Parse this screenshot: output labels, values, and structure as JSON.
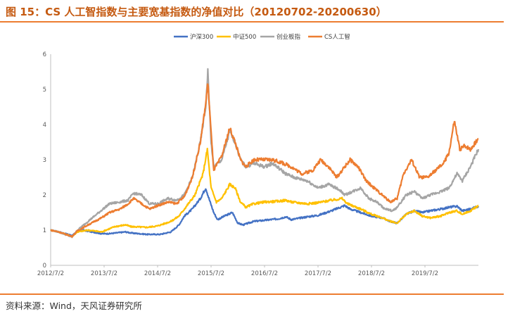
{
  "title": "图 15：CS 人工智指数与主要宽基指数的净值对比（20120702-20200630）",
  "source": "资料来源：Wind，天风证券研究所",
  "chart_data": {
    "type": "line",
    "x_labels": [
      "2012/7/2",
      "2013/7/2",
      "2014/7/2",
      "2015/7/2",
      "2016/7/2",
      "2017/7/2",
      "2018/7/2",
      "2019/7/2"
    ],
    "x_label_dates": [
      2012.5,
      2013.5,
      2014.5,
      2015.5,
      2016.5,
      2017.5,
      2018.5,
      2019.5
    ],
    "xlim": [
      2012.5,
      2020.5
    ],
    "ylim": [
      0,
      6
    ],
    "y_ticks": [
      "0",
      "1",
      "2",
      "3",
      "4",
      "5",
      "6"
    ],
    "grid": false,
    "legend_position": "top-center",
    "series": [
      {
        "name": "沪深300",
        "color": "#4472c4",
        "points": [
          [
            2012.5,
            1.0
          ],
          [
            2012.65,
            0.95
          ],
          [
            2012.9,
            0.85
          ],
          [
            2013.0,
            0.95
          ],
          [
            2013.1,
            1.0
          ],
          [
            2013.45,
            0.9
          ],
          [
            2013.6,
            0.9
          ],
          [
            2013.9,
            0.95
          ],
          [
            2014.0,
            0.92
          ],
          [
            2014.3,
            0.88
          ],
          [
            2014.55,
            0.88
          ],
          [
            2014.75,
            0.95
          ],
          [
            2014.9,
            1.15
          ],
          [
            2015.0,
            1.4
          ],
          [
            2015.15,
            1.6
          ],
          [
            2015.3,
            1.9
          ],
          [
            2015.4,
            2.2
          ],
          [
            2015.46,
            1.9
          ],
          [
            2015.55,
            1.5
          ],
          [
            2015.62,
            1.3
          ],
          [
            2015.75,
            1.4
          ],
          [
            2015.9,
            1.5
          ],
          [
            2016.0,
            1.2
          ],
          [
            2016.1,
            1.15
          ],
          [
            2016.3,
            1.25
          ],
          [
            2016.5,
            1.28
          ],
          [
            2016.75,
            1.32
          ],
          [
            2016.9,
            1.38
          ],
          [
            2017.0,
            1.3
          ],
          [
            2017.3,
            1.38
          ],
          [
            2017.5,
            1.42
          ],
          [
            2017.75,
            1.55
          ],
          [
            2018.0,
            1.7
          ],
          [
            2018.1,
            1.6
          ],
          [
            2018.3,
            1.5
          ],
          [
            2018.5,
            1.4
          ],
          [
            2018.7,
            1.35
          ],
          [
            2018.85,
            1.25
          ],
          [
            2018.98,
            1.2
          ],
          [
            2019.15,
            1.45
          ],
          [
            2019.3,
            1.55
          ],
          [
            2019.45,
            1.5
          ],
          [
            2019.6,
            1.55
          ],
          [
            2019.8,
            1.6
          ],
          [
            2019.95,
            1.65
          ],
          [
            2020.1,
            1.68
          ],
          [
            2020.2,
            1.55
          ],
          [
            2020.35,
            1.6
          ],
          [
            2020.5,
            1.68
          ]
        ]
      },
      {
        "name": "中证500",
        "color": "#ffc000",
        "points": [
          [
            2012.5,
            1.0
          ],
          [
            2012.65,
            0.95
          ],
          [
            2012.9,
            0.82
          ],
          [
            2013.0,
            0.95
          ],
          [
            2013.2,
            1.0
          ],
          [
            2013.45,
            0.95
          ],
          [
            2013.7,
            1.1
          ],
          [
            2013.9,
            1.15
          ],
          [
            2014.0,
            1.1
          ],
          [
            2014.3,
            1.08
          ],
          [
            2014.5,
            1.12
          ],
          [
            2014.75,
            1.25
          ],
          [
            2014.9,
            1.4
          ],
          [
            2015.0,
            1.6
          ],
          [
            2015.2,
            2.0
          ],
          [
            2015.35,
            2.6
          ],
          [
            2015.43,
            3.3
          ],
          [
            2015.5,
            2.2
          ],
          [
            2015.6,
            1.8
          ],
          [
            2015.7,
            1.9
          ],
          [
            2015.85,
            2.3
          ],
          [
            2015.95,
            2.2
          ],
          [
            2016.05,
            1.8
          ],
          [
            2016.15,
            1.65
          ],
          [
            2016.3,
            1.75
          ],
          [
            2016.5,
            1.8
          ],
          [
            2016.75,
            1.82
          ],
          [
            2016.9,
            1.85
          ],
          [
            2017.0,
            1.8
          ],
          [
            2017.3,
            1.75
          ],
          [
            2017.5,
            1.78
          ],
          [
            2017.75,
            1.85
          ],
          [
            2017.95,
            1.9
          ],
          [
            2018.05,
            1.75
          ],
          [
            2018.3,
            1.6
          ],
          [
            2018.5,
            1.45
          ],
          [
            2018.7,
            1.35
          ],
          [
            2018.85,
            1.25
          ],
          [
            2018.98,
            1.2
          ],
          [
            2019.15,
            1.45
          ],
          [
            2019.3,
            1.55
          ],
          [
            2019.45,
            1.4
          ],
          [
            2019.6,
            1.35
          ],
          [
            2019.8,
            1.4
          ],
          [
            2019.95,
            1.5
          ],
          [
            2020.1,
            1.55
          ],
          [
            2020.2,
            1.45
          ],
          [
            2020.35,
            1.55
          ],
          [
            2020.5,
            1.7
          ]
        ]
      },
      {
        "name": "创业板指",
        "color": "#a5a5a5",
        "points": [
          [
            2012.5,
            1.0
          ],
          [
            2012.65,
            0.95
          ],
          [
            2012.9,
            0.8
          ],
          [
            2013.0,
            1.0
          ],
          [
            2013.2,
            1.25
          ],
          [
            2013.4,
            1.5
          ],
          [
            2013.6,
            1.75
          ],
          [
            2013.8,
            1.8
          ],
          [
            2013.95,
            1.85
          ],
          [
            2014.05,
            2.05
          ],
          [
            2014.2,
            2.0
          ],
          [
            2014.35,
            1.75
          ],
          [
            2014.5,
            1.75
          ],
          [
            2014.7,
            1.9
          ],
          [
            2014.85,
            1.85
          ],
          [
            2015.0,
            2.0
          ],
          [
            2015.15,
            2.5
          ],
          [
            2015.3,
            3.5
          ],
          [
            2015.4,
            4.5
          ],
          [
            2015.44,
            5.5
          ],
          [
            2015.5,
            3.5
          ],
          [
            2015.55,
            2.8
          ],
          [
            2015.7,
            3.0
          ],
          [
            2015.85,
            3.8
          ],
          [
            2015.95,
            3.5
          ],
          [
            2016.05,
            3.0
          ],
          [
            2016.15,
            2.8
          ],
          [
            2016.3,
            2.9
          ],
          [
            2016.5,
            2.8
          ],
          [
            2016.65,
            2.9
          ],
          [
            2016.9,
            2.6
          ],
          [
            2017.05,
            2.5
          ],
          [
            2017.3,
            2.4
          ],
          [
            2017.5,
            2.2
          ],
          [
            2017.7,
            2.3
          ],
          [
            2017.9,
            2.15
          ],
          [
            2018.0,
            2.0
          ],
          [
            2018.15,
            2.1
          ],
          [
            2018.3,
            2.2
          ],
          [
            2018.45,
            1.9
          ],
          [
            2018.6,
            1.8
          ],
          [
            2018.75,
            1.6
          ],
          [
            2018.9,
            1.55
          ],
          [
            2018.98,
            1.65
          ],
          [
            2019.15,
            2.0
          ],
          [
            2019.3,
            2.1
          ],
          [
            2019.45,
            1.9
          ],
          [
            2019.6,
            2.0
          ],
          [
            2019.8,
            2.1
          ],
          [
            2019.95,
            2.2
          ],
          [
            2020.1,
            2.6
          ],
          [
            2020.2,
            2.4
          ],
          [
            2020.35,
            2.8
          ],
          [
            2020.5,
            3.3
          ]
        ]
      },
      {
        "name": "CS人工智",
        "color": "#ed7d31",
        "points": [
          [
            2012.5,
            1.0
          ],
          [
            2012.65,
            0.95
          ],
          [
            2012.9,
            0.82
          ],
          [
            2013.0,
            0.98
          ],
          [
            2013.2,
            1.15
          ],
          [
            2013.45,
            1.35
          ],
          [
            2013.6,
            1.5
          ],
          [
            2013.8,
            1.6
          ],
          [
            2013.95,
            1.75
          ],
          [
            2014.05,
            1.9
          ],
          [
            2014.2,
            1.75
          ],
          [
            2014.35,
            1.6
          ],
          [
            2014.5,
            1.7
          ],
          [
            2014.7,
            1.8
          ],
          [
            2014.85,
            1.75
          ],
          [
            2015.0,
            1.95
          ],
          [
            2015.15,
            2.5
          ],
          [
            2015.3,
            3.5
          ],
          [
            2015.4,
            4.6
          ],
          [
            2015.44,
            5.2
          ],
          [
            2015.5,
            3.8
          ],
          [
            2015.55,
            2.7
          ],
          [
            2015.7,
            3.1
          ],
          [
            2015.85,
            3.9
          ],
          [
            2015.95,
            3.5
          ],
          [
            2016.05,
            3.0
          ],
          [
            2016.15,
            2.8
          ],
          [
            2016.3,
            3.0
          ],
          [
            2016.5,
            3.0
          ],
          [
            2016.65,
            3.0
          ],
          [
            2016.85,
            2.9
          ],
          [
            2017.0,
            2.8
          ],
          [
            2017.2,
            2.6
          ],
          [
            2017.4,
            2.7
          ],
          [
            2017.55,
            3.0
          ],
          [
            2017.7,
            2.8
          ],
          [
            2017.85,
            2.5
          ],
          [
            2018.0,
            2.8
          ],
          [
            2018.1,
            3.0
          ],
          [
            2018.25,
            2.8
          ],
          [
            2018.4,
            2.4
          ],
          [
            2018.55,
            2.2
          ],
          [
            2018.7,
            2.0
          ],
          [
            2018.85,
            1.8
          ],
          [
            2018.98,
            1.9
          ],
          [
            2019.1,
            2.6
          ],
          [
            2019.25,
            3.0
          ],
          [
            2019.4,
            2.5
          ],
          [
            2019.55,
            2.5
          ],
          [
            2019.7,
            2.7
          ],
          [
            2019.85,
            2.9
          ],
          [
            2019.95,
            3.2
          ],
          [
            2020.05,
            4.1
          ],
          [
            2020.15,
            3.3
          ],
          [
            2020.25,
            3.4
          ],
          [
            2020.35,
            3.3
          ],
          [
            2020.5,
            3.6
          ]
        ]
      }
    ]
  }
}
